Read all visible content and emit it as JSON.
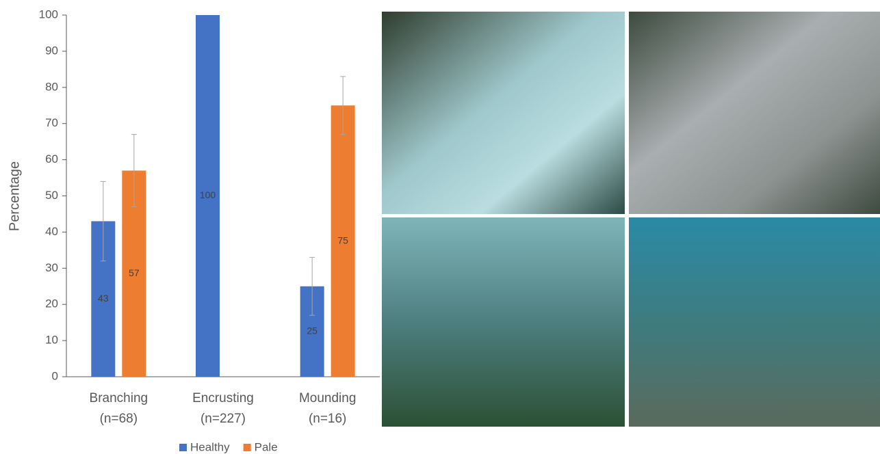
{
  "chart_data": {
    "type": "bar",
    "y_label": "Percentage",
    "categories": [
      "Branching (n=68)",
      "Encrusting (n=227)",
      "Mounding (n=16)"
    ],
    "series": [
      {
        "name": "Healthy",
        "color": "#4472c4",
        "values": [
          43,
          100,
          25
        ],
        "errors": [
          11,
          null,
          8
        ]
      },
      {
        "name": "Pale",
        "color": "#ed7d31",
        "values": [
          57,
          null,
          75
        ],
        "errors": [
          10,
          null,
          8
        ]
      }
    ],
    "ylim": [
      0,
      100
    ],
    "yticks": [
      0,
      10,
      20,
      30,
      40,
      50,
      60,
      70,
      80,
      90,
      100
    ],
    "grid": false,
    "legend": "bottom"
  }
}
